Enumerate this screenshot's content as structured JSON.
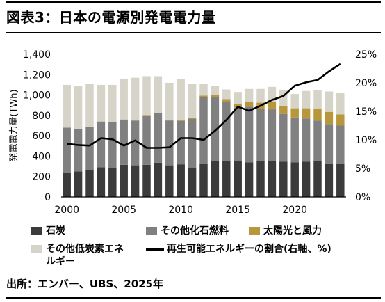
{
  "title": "図表3：日本の電源別発電電力量",
  "source": "出所：エンバー、UBS、2025年",
  "chart_data": {
    "type": "bar",
    "stacked": true,
    "ylabel": "発電電力量(TWh)",
    "ylim": [
      0,
      1400
    ],
    "y_ticks": [
      "0",
      "200",
      "400",
      "600",
      "800",
      "1,000",
      "1,200",
      "1,400"
    ],
    "y2lim": [
      0,
      25
    ],
    "y2_ticks": [
      "0%",
      "5%",
      "10%",
      "15%",
      "20%",
      "25%"
    ],
    "x_ticks": [
      "2000",
      "2005",
      "2010",
      "2015",
      "2020"
    ],
    "categories": [
      "2000",
      "2001",
      "2002",
      "2003",
      "2004",
      "2005",
      "2006",
      "2007",
      "2008",
      "2009",
      "2010",
      "2011",
      "2012",
      "2013",
      "2014",
      "2015",
      "2016",
      "2017",
      "2018",
      "2019",
      "2020",
      "2021",
      "2022",
      "2023",
      "2024"
    ],
    "series": [
      {
        "name": "石炭",
        "color": "#3b3b3b",
        "values": [
          235,
          250,
          265,
          290,
          285,
          315,
          310,
          315,
          335,
          310,
          320,
          285,
          330,
          355,
          350,
          350,
          340,
          355,
          350,
          345,
          340,
          345,
          350,
          325,
          325
        ]
      },
      {
        "name": "その他化石燃料",
        "color": "#808080",
        "values": [
          445,
          415,
          420,
          450,
          450,
          445,
          440,
          485,
          485,
          440,
          425,
          480,
          650,
          625,
          580,
          525,
          545,
          510,
          510,
          470,
          440,
          425,
          400,
          390,
          375
        ]
      },
      {
        "name": "太陽光と風力",
        "color": "#b8963a",
        "values": [
          0,
          0,
          0,
          0,
          0,
          0,
          0,
          5,
          5,
          5,
          10,
          10,
          15,
          20,
          30,
          40,
          50,
          60,
          70,
          80,
          90,
          100,
          115,
          120,
          110
        ]
      },
      {
        "name": "その他低炭素エネルギー",
        "color": "#d6d3c8",
        "values": [
          420,
          425,
          425,
          360,
          365,
          395,
          420,
          380,
          360,
          365,
          405,
          335,
          115,
          90,
          95,
          115,
          125,
          135,
          150,
          150,
          140,
          170,
          180,
          200,
          210
        ]
      }
    ],
    "line": {
      "name": "再生可能エネルギーの割合(右軸、%)",
      "color": "#000000",
      "axis": "right",
      "values": [
        9.3,
        9.1,
        9.0,
        10.3,
        10.1,
        9.0,
        9.9,
        8.6,
        8.6,
        8.7,
        10.3,
        10.3,
        10.0,
        11.6,
        13.5,
        15.8,
        15.1,
        16.0,
        17.0,
        17.7,
        19.5,
        20.1,
        20.5,
        22.0,
        23.3
      ]
    },
    "legend": [
      {
        "label": "石炭",
        "kind": "box",
        "color": "#3b3b3b"
      },
      {
        "label": "その他化石燃料",
        "kind": "box",
        "color": "#808080"
      },
      {
        "label": "太陽光と風力",
        "kind": "box",
        "color": "#b8963a"
      },
      {
        "label": "その他低炭素エネルギー",
        "kind": "box",
        "color": "#d6d3c8"
      },
      {
        "label": "再生可能エネルギーの割合(右軸、%)",
        "kind": "line",
        "color": "#000000"
      }
    ]
  }
}
